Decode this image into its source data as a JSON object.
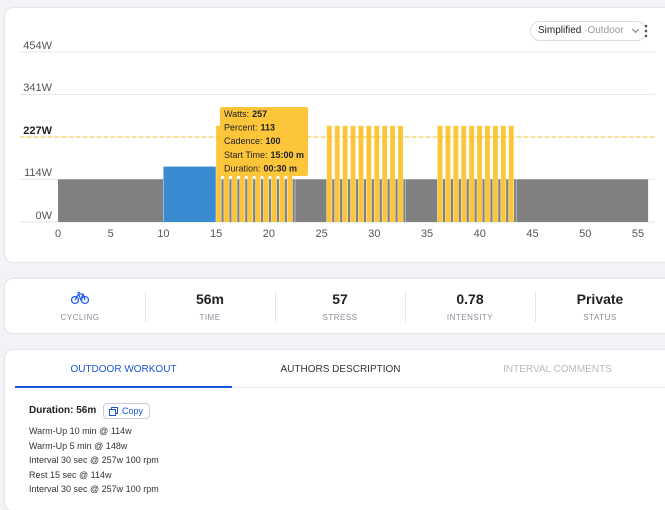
{
  "view_toggle": {
    "selected": "Simplified",
    "option": "Outdoor"
  },
  "chart_data": {
    "type": "histogram",
    "bins": [
      0,
      10,
      15,
      15.5,
      15.75,
      16.25,
      16.5,
      17,
      17.25,
      17.75,
      18,
      18.5,
      18.75,
      19.25,
      19.5,
      20,
      20.25,
      20.75,
      21,
      21.5,
      21.75,
      22.25,
      22.5,
      25.5,
      26,
      26.25,
      26.75,
      27,
      27.5,
      27.75,
      28.25,
      28.5,
      29,
      29.25,
      29.75,
      30,
      30.5,
      30.75,
      31.25,
      31.5,
      32,
      32.25,
      32.75,
      33,
      36,
      36.5,
      36.75,
      37.25,
      37.5,
      38,
      38.25,
      38.75,
      39,
      39.5,
      39.75,
      40.25,
      40.5,
      41,
      41.25,
      41.75,
      42,
      42.5,
      42.75,
      43.25,
      43.5,
      56
    ],
    "values": [
      114,
      148,
      257,
      114,
      257,
      114,
      257,
      114,
      257,
      114,
      257,
      114,
      257,
      114,
      257,
      114,
      257,
      114,
      257,
      114,
      257,
      114,
      114,
      257,
      114,
      257,
      114,
      257,
      114,
      257,
      114,
      257,
      114,
      257,
      114,
      257,
      114,
      257,
      114,
      257,
      114,
      257,
      114,
      114,
      257,
      114,
      257,
      114,
      257,
      114,
      257,
      114,
      257,
      114,
      257,
      114,
      257,
      114,
      257,
      114,
      257,
      114,
      257,
      114,
      114
    ],
    "colors": [
      "#808080",
      "#3b8bd0",
      "#fcc53a",
      "#808080",
      "#fcc53a",
      "#808080",
      "#fcc53a",
      "#808080",
      "#fcc53a",
      "#808080",
      "#fcc53a",
      "#808080",
      "#fcc53a",
      "#808080",
      "#fcc53a",
      "#808080",
      "#fcc53a",
      "#808080",
      "#fcc53a",
      "#808080",
      "#fcc53a",
      "#808080",
      "#808080",
      "#fcc53a",
      "#808080",
      "#fcc53a",
      "#808080",
      "#fcc53a",
      "#808080",
      "#fcc53a",
      "#808080",
      "#fcc53a",
      "#808080",
      "#fcc53a",
      "#808080",
      "#fcc53a",
      "#808080",
      "#fcc53a",
      "#808080",
      "#fcc53a",
      "#808080",
      "#fcc53a",
      "#808080",
      "#808080",
      "#fcc53a",
      "#808080",
      "#fcc53a",
      "#808080",
      "#fcc53a",
      "#808080",
      "#fcc53a",
      "#808080",
      "#fcc53a",
      "#808080",
      "#fcc53a",
      "#808080",
      "#fcc53a",
      "#808080",
      "#fcc53a",
      "#808080",
      "#fcc53a",
      "#808080",
      "#fcc53a",
      "#808080",
      "#808080"
    ],
    "xlim": [
      0,
      56
    ],
    "xticks": [
      0,
      5,
      10,
      15,
      20,
      25,
      30,
      35,
      40,
      45,
      50,
      55
    ],
    "ylim": [
      0,
      454
    ],
    "yticks": [
      {
        "value": 0,
        "label": "0W"
      },
      {
        "value": 114,
        "label": "114W"
      },
      {
        "value": 227,
        "label": "227W"
      },
      {
        "value": 341,
        "label": "341W"
      },
      {
        "value": 454,
        "label": "454W"
      }
    ],
    "grid": true,
    "reference_line": 227,
    "reference_color": "#f5c518",
    "tooltip": [
      {
        "label": "Watts:",
        "value": 257
      },
      {
        "label": "Percent:",
        "value": 113
      },
      {
        "label": "Cadence:",
        "value": 100
      },
      {
        "label": "Start Time:",
        "value": "15:00 m"
      },
      {
        "label": "Duration:",
        "value": "00:30 m"
      }
    ]
  },
  "stats": [
    {
      "value": null,
      "label": "CYCLING"
    },
    {
      "value": "56m",
      "label": "TIME"
    },
    {
      "value": "57",
      "label": "STRESS"
    },
    {
      "value": "0.78",
      "label": "INTENSITY"
    },
    {
      "value": "Private",
      "label": "STATUS"
    }
  ],
  "tabs": [
    "OUTDOOR WORKOUT",
    "AUTHORS DESCRIPTION",
    "INTERVAL COMMENTS"
  ],
  "workout": {
    "duration": "Duration: 56m",
    "copy": "Copy",
    "lines": [
      "Warm-Up 10 min @ 114w",
      "Warm-Up 5 min @ 148w",
      "Interval 30 sec @ 257w 100 rpm",
      "Rest 15 sec @ 114w",
      "Interval 30 sec @ 257w 100 rpm"
    ]
  }
}
